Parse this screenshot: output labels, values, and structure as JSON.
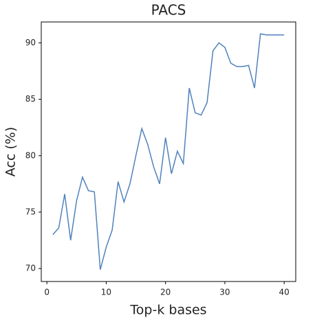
{
  "chart_data": {
    "type": "line",
    "title": "PACS",
    "x_label": "Top-k bases",
    "y_label": "Acc (%)",
    "x": [
      1,
      2,
      3,
      4,
      5,
      6,
      7,
      8,
      9,
      10,
      11,
      12,
      13,
      14,
      15,
      16,
      17,
      18,
      19,
      20,
      21,
      22,
      23,
      24,
      25,
      26,
      27,
      28,
      29,
      30,
      31,
      32,
      33,
      34,
      35,
      36,
      37,
      38,
      39,
      40
    ],
    "series": [
      {
        "name": "PACS",
        "color": "#4f81bd",
        "values": [
          73.0,
          73.6,
          76.6,
          72.5,
          76.0,
          78.1,
          76.9,
          76.8,
          69.9,
          71.9,
          73.4,
          77.7,
          75.9,
          77.5,
          80.0,
          82.4,
          81.0,
          79.0,
          77.5,
          81.6,
          78.4,
          80.4,
          79.3,
          86.0,
          83.8,
          83.6,
          84.7,
          89.3,
          90.0,
          89.6,
          88.2,
          87.9,
          87.9,
          88.0,
          86.0,
          90.8,
          90.7,
          90.7,
          90.7,
          90.7
        ]
      }
    ],
    "xlim": [
      -0.95,
      41.95
    ],
    "xticks": [
      0,
      10,
      20,
      30,
      40
    ],
    "ylim": [
      68.85,
      91.85
    ],
    "yticks": [
      70,
      75,
      80,
      85,
      90
    ]
  }
}
